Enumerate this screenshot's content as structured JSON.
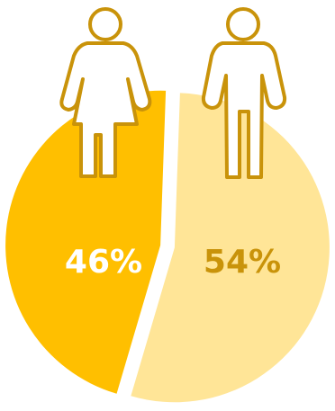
{
  "chart_data": {
    "type": "pie",
    "categories": [
      "female",
      "male"
    ],
    "values": [
      46,
      54
    ],
    "data_labels": [
      "46%",
      "54%"
    ],
    "colors": [
      "#FFBF00",
      "#FFE597"
    ],
    "label_colors": [
      "#FFFFFF",
      "#C9930A"
    ]
  },
  "icons": {
    "left": "woman-icon",
    "right": "man-icon",
    "stroke_color": "#C9930A"
  }
}
